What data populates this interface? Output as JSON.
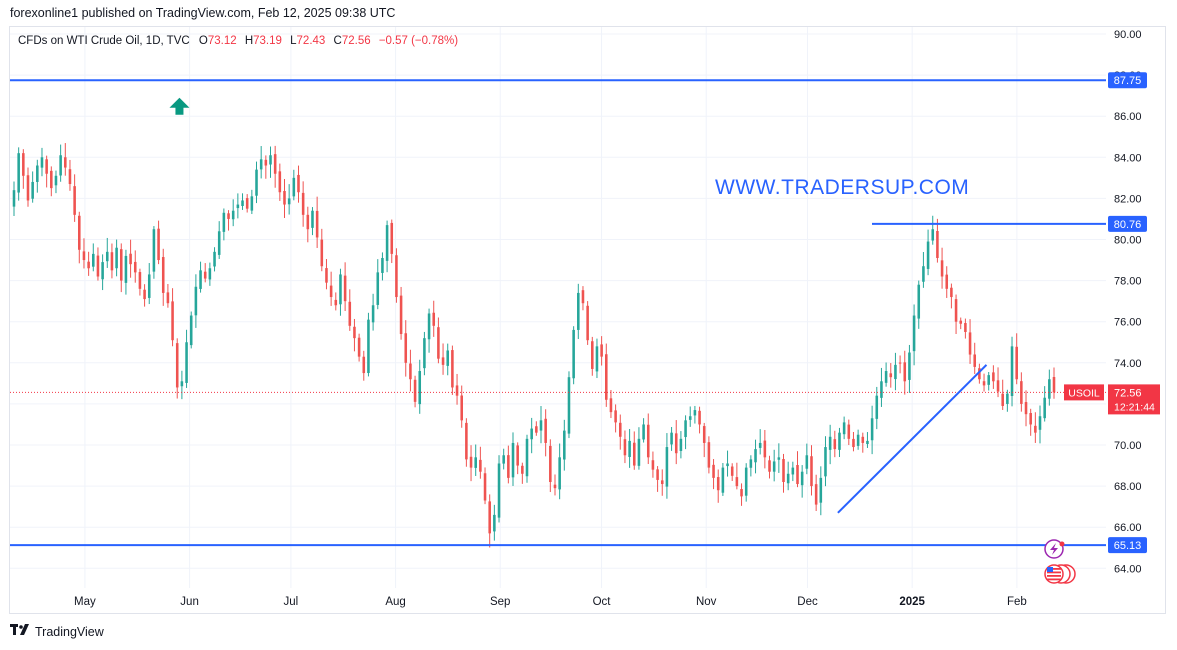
{
  "header": {
    "published": "forexonline1 published on TradingView.com, Feb 12, 2025 09:38 UTC"
  },
  "legend": {
    "symbol": "CFDs on WTI Crude Oil, 1D, TVC",
    "o_label": "O",
    "o_value": "73.12",
    "h_label": "H",
    "h_value": "73.19",
    "l_label": "L",
    "l_value": "72.43",
    "c_label": "C",
    "c_value": "72.56",
    "change": "−0.57 (−0.78%)"
  },
  "watermark": "WWW.TRADERSUP.COM",
  "footer": {
    "brand": "TradingView",
    "brand_icon": "tradingview-logo-icon"
  },
  "colors": {
    "up": "#26a69a",
    "down": "#ef5350",
    "line": "#2962ff",
    "grid": "#f0f3fa",
    "axis_text": "#131722",
    "price_line": "#f23645"
  },
  "chart_data": {
    "type": "candlestick",
    "title": "CFDs on WTI Crude Oil, 1D, TVC",
    "grid": true,
    "ylim": [
      63,
      91
    ],
    "y_ticks": [
      "64.00",
      "66.00",
      "68.00",
      "70.00",
      "72.00",
      "74.00",
      "76.00",
      "78.00",
      "80.00",
      "82.00",
      "84.00",
      "86.00",
      "88.00",
      "90.00"
    ],
    "x_ticks": [
      "May",
      "Jun",
      "Jul",
      "Aug",
      "Sep",
      "Oct",
      "Nov",
      "Dec",
      "2025",
      "Feb"
    ],
    "x_range": [
      "2024-04-10",
      "2025-02-12"
    ],
    "x_tick_dates": [
      "2024-05-01",
      "2024-06-01",
      "2024-07-01",
      "2024-08-01",
      "2024-09-01",
      "2024-10-01",
      "2024-11-01",
      "2024-12-01",
      "2025-01-01",
      "2025-02-01"
    ],
    "closes": [
      [
        82.4,
        84.2,
        83.1,
        81.9,
        82.8,
        83.6,
        84.0,
        83.2,
        82.5,
        83.1,
        84.1,
        83.5,
        82.7,
        81.2,
        79.5,
        79.0,
        78.6,
        79.3,
        78.2,
        78.9,
        79.4,
        78.5,
        79.6,
        78.0,
        79.2,
        78.8,
        78.4,
        77.6,
        77.1,
        78.3,
        80.5,
        79.0,
        77.4,
        76.9,
        75.1,
        72.8,
        73.1,
        75.0,
        76.3,
        77.7,
        78.5,
        78.1,
        78.6,
        79.4,
        80.4,
        81.3,
        81.0,
        81.4,
        81.7,
        81.9,
        81.5,
        82.1,
        83.4,
        83.9,
        83.6,
        84.1,
        83.2,
        82.3,
        81.7,
        82.0,
        83.0,
        82.3,
        81.2,
        80.5,
        81.4,
        80.1,
        78.7,
        77.9,
        77.2,
        76.8,
        78.3,
        77.0,
        75.8,
        75.2,
        74.3,
        73.5,
        76.1,
        76.8,
        78.4,
        79.1,
        80.7,
        79.3,
        77.2,
        75.4,
        74.0,
        73.2,
        72.1,
        73.6,
        75.2,
        76.4,
        75.8,
        74.2,
        73.9,
        74.6,
        72.8,
        72.4,
        71.2,
        69.3,
        68.9,
        69.4,
        68.7,
        67.3,
        65.7,
        66.6,
        69.1,
        69.5,
        68.4,
        70.1,
        69.0,
        68.6,
        70.3,
        70.8,
        70.6,
        71.2,
        70.1,
        68.2,
        67.9,
        69.4,
        70.7,
        73.3,
        75.6,
        77.4,
        76.9,
        75.1,
        73.7,
        74.8,
        74.3,
        72.2,
        71.6,
        71.1,
        70.4,
        69.5,
        70.2,
        69.0,
        70.3,
        71.0,
        69.4,
        68.8,
        68.3,
        68.1,
        69.9,
        70.6,
        69.6,
        70.3,
        71.2,
        71.4,
        71.7,
        71.0,
        70.1,
        68.9,
        68.4,
        67.8,
        68.9,
        69.1,
        68.5,
        68.0,
        67.5,
        68.9,
        69.3,
        69.8,
        70.1,
        69.4,
        68.7,
        69.2,
        69.4,
        68.2,
        68.6,
        68.9,
        68.1,
        68.7,
        69.5,
        68.0,
        67.1,
        68.4,
        69.9,
        70.4,
        69.8,
        70.6,
        71.1,
        70.3,
        69.9,
        70.5,
        70.1,
        70.2,
        71.3,
        72.4,
        73.1,
        73.6,
        73.3,
        73.9,
        74.0,
        73.1,
        74.5,
        76.3,
        77.8,
        78.7,
        79.9,
        80.5,
        79.1,
        78.2,
        77.6,
        77.2,
        76.0,
        75.9,
        75.5,
        74.4,
        73.8,
        73.2,
        72.9,
        73.4,
        73.1,
        72.6,
        71.9,
        72.5,
        74.8,
        73.2,
        72.0,
        71.5,
        71.0,
        70.6,
        71.4,
        72.3,
        73.2,
        72.56
      ]
    ],
    "last_price": 72.56,
    "last_price_label": "USOIL",
    "countdown": "12:21:44",
    "horizontal_levels": [
      {
        "label": "87.75",
        "value": 87.75
      },
      {
        "label": "80.76",
        "value": 80.76
      },
      {
        "label": "65.13",
        "value": 65.13
      }
    ],
    "trendline": {
      "from": [
        "2024-12-10",
        66.7
      ],
      "to": [
        "2025-01-23",
        73.9
      ]
    },
    "annotations": [
      {
        "type": "arrow-up",
        "date": "2024-05-29",
        "value": 86.9
      }
    ],
    "event_icons": [
      "flash-event-icon",
      "us-flag-event-icon"
    ]
  }
}
